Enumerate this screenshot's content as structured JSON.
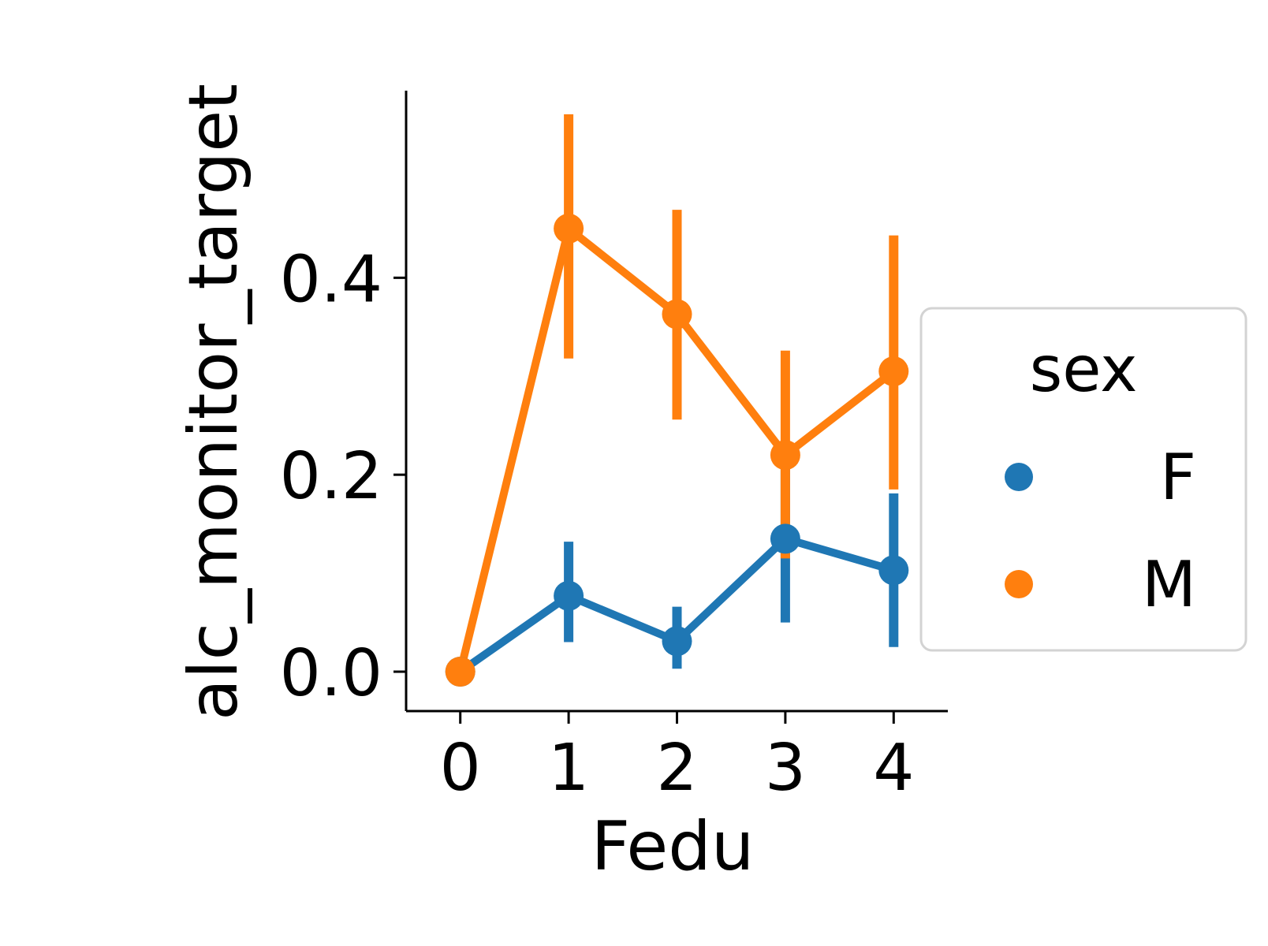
{
  "chart_data": {
    "type": "line",
    "xlabel": "Fedu",
    "ylabel": "alc_monitor_target",
    "x": [
      0,
      1,
      2,
      3,
      4
    ],
    "x_tick_labels": [
      "0",
      "1",
      "2",
      "3",
      "4"
    ],
    "ylim": [
      -0.04,
      0.59
    ],
    "y_ticks": [
      0.0,
      0.2,
      0.4
    ],
    "y_tick_labels": [
      "0.0",
      "0.2",
      "0.4"
    ],
    "grid": false,
    "legend": {
      "title": "sex",
      "placement": "right",
      "entries": [
        "F",
        "M"
      ]
    },
    "series": [
      {
        "name": "F",
        "color": "#1f77b4",
        "values": [
          0.0,
          0.077,
          0.031,
          0.135,
          0.103
        ],
        "ci_low": [
          0.0,
          0.03,
          0.003,
          0.05,
          0.025
        ],
        "ci_high": [
          0.0,
          0.132,
          0.066,
          0.21,
          0.181
        ]
      },
      {
        "name": "M",
        "color": "#ff7f0e",
        "values": [
          0.0,
          0.45,
          0.363,
          0.22,
          0.305
        ],
        "ci_low": [
          0.0,
          0.318,
          0.256,
          0.115,
          0.185
        ],
        "ci_high": [
          0.0,
          0.566,
          0.469,
          0.326,
          0.443
        ]
      }
    ]
  }
}
